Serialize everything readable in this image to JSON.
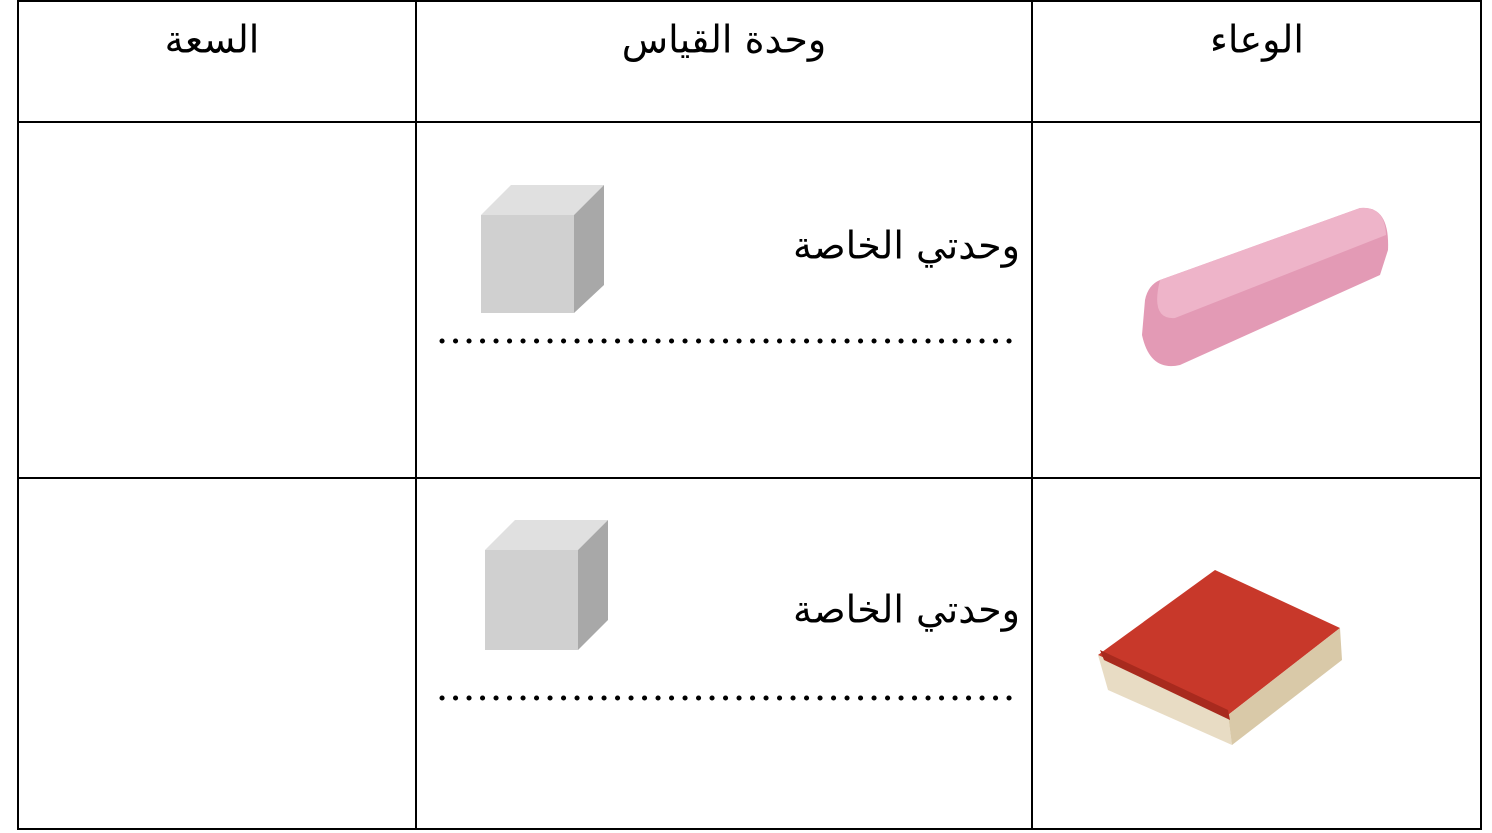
{
  "table": {
    "header": [
      "الوعاء",
      "وحدة القياس",
      "السعة"
    ],
    "rows": [
      {
        "unit_label": "وحدتي الخاصة"
      },
      {
        "unit_label": "وحدتي الخاصة"
      }
    ]
  }
}
